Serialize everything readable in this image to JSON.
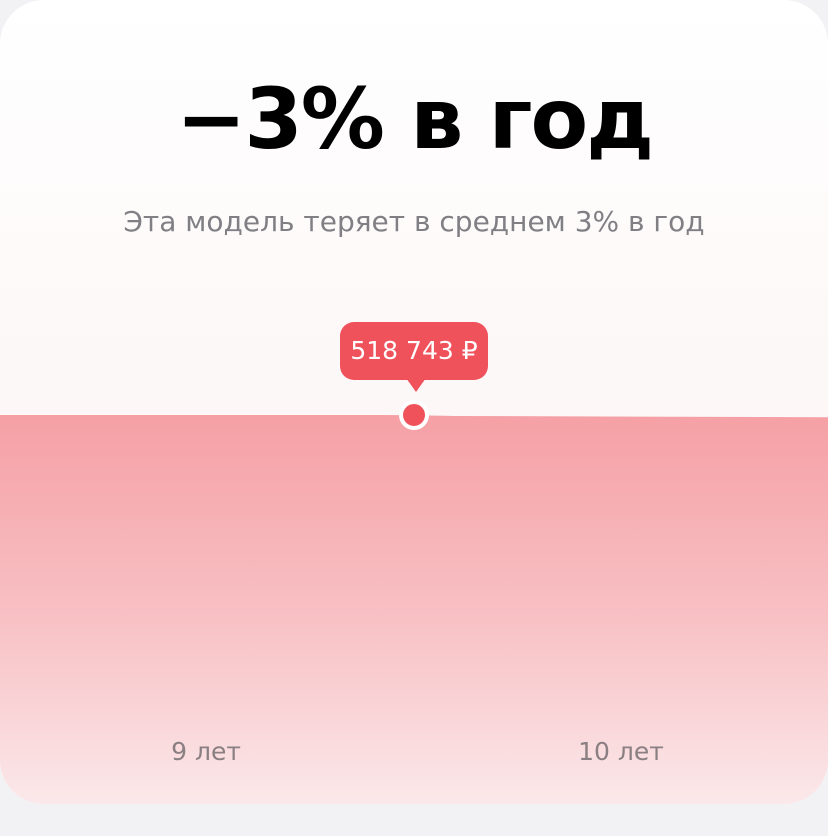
{
  "header": {
    "headline": "−3% в год",
    "subtitle": "Эта модель теряет в среднем 3% в год"
  },
  "tooltip": {
    "value_label": "518 743 ₽"
  },
  "colors": {
    "accent": "#f0525c",
    "area_top": "#f5a0a5",
    "area_bottom": "#fbe8ea",
    "text_primary": "#000000",
    "text_secondary": "#7f7f84"
  },
  "chart_data": {
    "type": "area",
    "title": "",
    "xlabel": "",
    "ylabel": "",
    "x_ticks": [
      "9 лет",
      "10 лет"
    ],
    "x": [
      8.5,
      9.5,
      10.5
    ],
    "values": [
      518743,
      518743,
      503000
    ],
    "highlight": {
      "x": 9.5,
      "value": 518743,
      "label": "518 743 ₽"
    },
    "ylim": [
      0,
      900000
    ],
    "grid": false,
    "legend": "none"
  }
}
